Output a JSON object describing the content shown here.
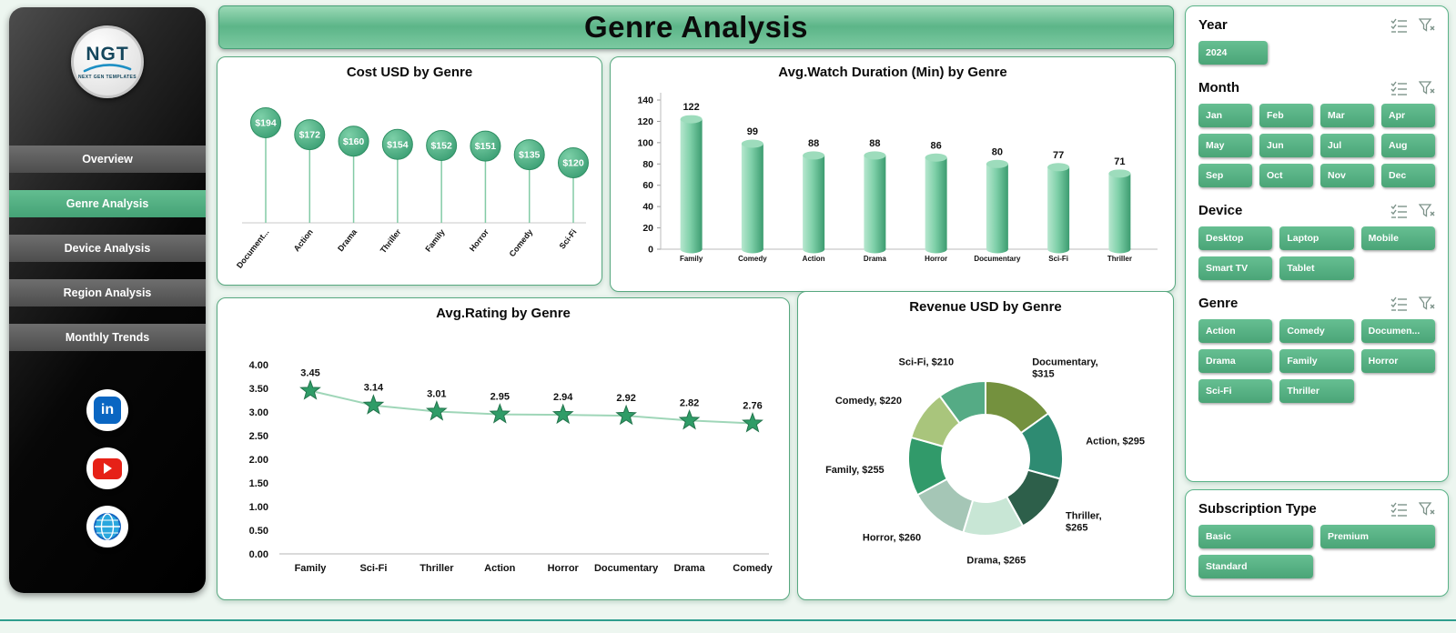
{
  "theme": {
    "accent": "#53ae80",
    "accent_dark": "#3f9e72",
    "accent_light": "#a9e2c6",
    "sidebar_bg": "#000000",
    "bottom_rule": "#2f9e8e"
  },
  "header": {
    "title": "Genre Analysis"
  },
  "sidebar": {
    "logo_text": "NGT",
    "logo_subtext": "NEXT GEN TEMPLATES",
    "nav": [
      {
        "label": "Overview",
        "active": false
      },
      {
        "label": "Genre Analysis",
        "active": true
      },
      {
        "label": "Device Analysis",
        "active": false
      },
      {
        "label": "Region Analysis",
        "active": false
      },
      {
        "label": "Monthly Trends",
        "active": false
      }
    ],
    "social_icons": [
      "linkedin-icon",
      "youtube-icon",
      "website-icon"
    ]
  },
  "filters": [
    {
      "key": "year",
      "label": "Year",
      "options": [
        "2024"
      ]
    },
    {
      "key": "month",
      "label": "Month",
      "options": [
        "Jan",
        "Feb",
        "Mar",
        "Apr",
        "May",
        "Jun",
        "Jul",
        "Aug",
        "Sep",
        "Oct",
        "Nov",
        "Dec"
      ]
    },
    {
      "key": "device",
      "label": "Device",
      "options": [
        "Desktop",
        "Laptop",
        "Mobile",
        "Smart TV",
        "Tablet"
      ]
    },
    {
      "key": "genre",
      "label": "Genre",
      "options": [
        "Action",
        "Comedy",
        "Documen...",
        "Drama",
        "Family",
        "Horror",
        "Sci-Fi",
        "Thriller"
      ]
    },
    {
      "key": "subscription",
      "label": "Subscription Type",
      "options": [
        "Basic",
        "Premium",
        "Standard"
      ]
    }
  ],
  "chart_data": [
    {
      "type": "lollipop",
      "title": "Cost USD by Genre",
      "categories": [
        "Document...",
        "Action",
        "Drama",
        "Thriller",
        "Family",
        "Horror",
        "Comedy",
        "Sci-Fi"
      ],
      "values": [
        194,
        172,
        160,
        154,
        152,
        151,
        135,
        120
      ],
      "labels": [
        "$194",
        "$172",
        "$160",
        "$154",
        "$152",
        "$151",
        "$135",
        "$120"
      ]
    },
    {
      "type": "bar",
      "title": "Avg.Watch Duration (Min) by Genre",
      "categories": [
        "Family",
        "Comedy",
        "Action",
        "Drama",
        "Horror",
        "Documentary",
        "Sci-Fi",
        "Thriller"
      ],
      "values": [
        122,
        99,
        88,
        88,
        86,
        80,
        77,
        71
      ],
      "ylim": [
        0,
        140
      ],
      "ytick_step": 20
    },
    {
      "type": "line",
      "title": "Avg.Rating by Genre",
      "categories": [
        "Family",
        "Sci-Fi",
        "Thriller",
        "Action",
        "Horror",
        "Documentary",
        "Drama",
        "Comedy"
      ],
      "values": [
        3.45,
        3.14,
        3.01,
        2.95,
        2.94,
        2.92,
        2.82,
        2.76
      ],
      "ylim": [
        0,
        4
      ],
      "ytick_step": 0.5
    },
    {
      "type": "pie",
      "title": "Revenue USD by Genre",
      "segments": [
        {
          "label": "Documentary",
          "value": 315,
          "color": "#74913e"
        },
        {
          "label": "Action",
          "value": 295,
          "color": "#2e8b72"
        },
        {
          "label": "Thriller",
          "value": 265,
          "color": "#2d5f4a"
        },
        {
          "label": "Drama",
          "value": 265,
          "color": "#c8e6d5"
        },
        {
          "label": "Horror",
          "value": 260,
          "color": "#a5c6b6"
        },
        {
          "label": "Family",
          "value": 255,
          "color": "#319a6a"
        },
        {
          "label": "Comedy",
          "value": 220,
          "color": "#a9c57c"
        },
        {
          "label": "Sci-Fi",
          "value": 210,
          "color": "#55ab85"
        }
      ]
    }
  ]
}
